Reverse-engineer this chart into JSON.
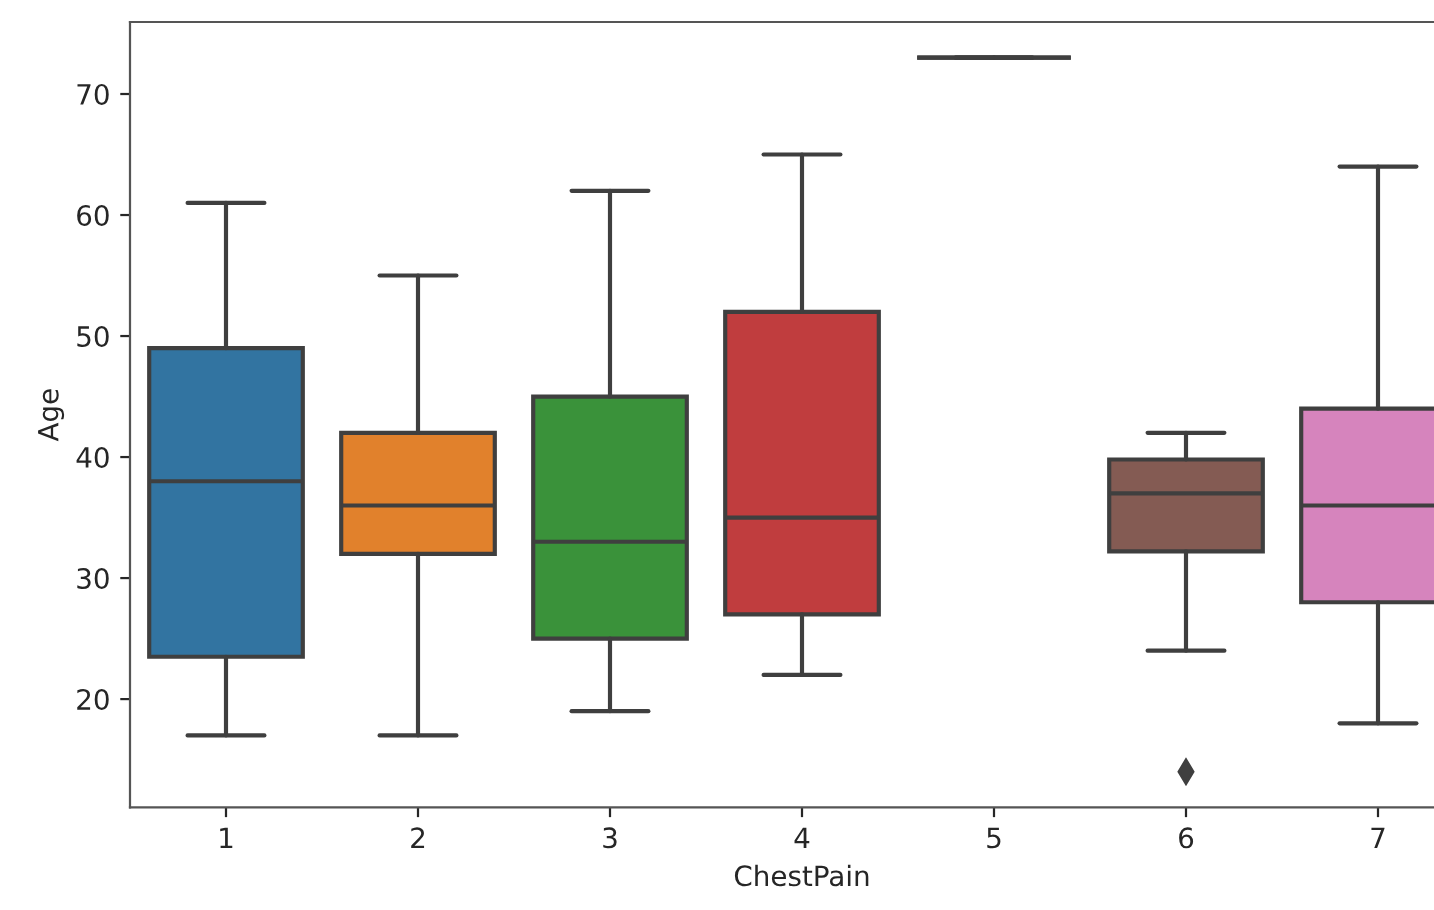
{
  "chart_data": {
    "type": "box",
    "xlabel": "ChestPain",
    "ylabel": "Age",
    "categories": [
      "1",
      "2",
      "3",
      "4",
      "5",
      "6",
      "7"
    ],
    "colors": [
      "#3274a1",
      "#e1812c",
      "#3a923a",
      "#c03d3e",
      "#3f3f3f",
      "#845b53",
      "#d684bd"
    ],
    "boxes": [
      {
        "low": 17,
        "q1": 23.5,
        "median": 38,
        "q3": 49,
        "high": 61
      },
      {
        "low": 17,
        "q1": 32,
        "median": 36,
        "q3": 42,
        "high": 55
      },
      {
        "low": 19,
        "q1": 25,
        "median": 33,
        "q3": 45,
        "high": 62
      },
      {
        "low": 22,
        "q1": 27,
        "median": 35,
        "q3": 52,
        "high": 65
      },
      {
        "low": 73,
        "q1": 73,
        "median": 73,
        "q3": 73,
        "high": 73
      },
      {
        "low": 24,
        "q1": 32.2,
        "median": 37,
        "q3": 39.8,
        "high": 42,
        "outliers": [
          14
        ]
      },
      {
        "low": 18,
        "q1": 28,
        "median": 36,
        "q3": 44,
        "high": 64
      }
    ],
    "ylim": [
      11.05,
      75.95
    ],
    "yticks": [
      20,
      30,
      40,
      50,
      60,
      70
    ]
  }
}
